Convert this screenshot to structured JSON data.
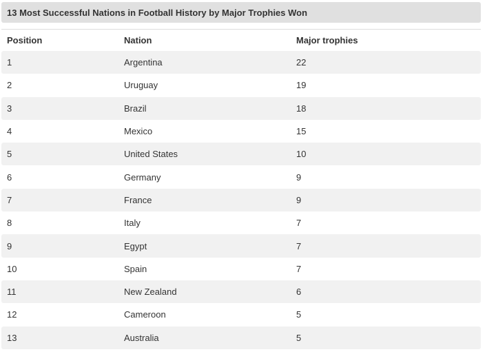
{
  "chart_data": {
    "type": "table",
    "title": "13 Most Successful Nations in Football History by Major Trophies Won",
    "columns": [
      "Position",
      "Nation",
      "Major trophies"
    ],
    "rows": [
      {
        "position": "1",
        "nation": "Argentina",
        "trophies": "22"
      },
      {
        "position": "2",
        "nation": "Uruguay",
        "trophies": "19"
      },
      {
        "position": "3",
        "nation": "Brazil",
        "trophies": "18"
      },
      {
        "position": "4",
        "nation": "Mexico",
        "trophies": "15"
      },
      {
        "position": "5",
        "nation": "United States",
        "trophies": "10"
      },
      {
        "position": "6",
        "nation": "Germany",
        "trophies": "9"
      },
      {
        "position": "7",
        "nation": "France",
        "trophies": "9"
      },
      {
        "position": "8",
        "nation": "Italy",
        "trophies": "7"
      },
      {
        "position": "9",
        "nation": "Egypt",
        "trophies": "7"
      },
      {
        "position": "10",
        "nation": "Spain",
        "trophies": "7"
      },
      {
        "position": "11",
        "nation": "New Zealand",
        "trophies": "6"
      },
      {
        "position": "12",
        "nation": "Cameroon",
        "trophies": "5"
      },
      {
        "position": "13",
        "nation": "Australia",
        "trophies": "5"
      }
    ]
  },
  "colors": {
    "title_bar_bg": "#e0e0e0",
    "row_alt_bg": "#f1f1f1",
    "text": "#333333",
    "header_border": "#dddddd",
    "page_bg": "#ffffff"
  }
}
